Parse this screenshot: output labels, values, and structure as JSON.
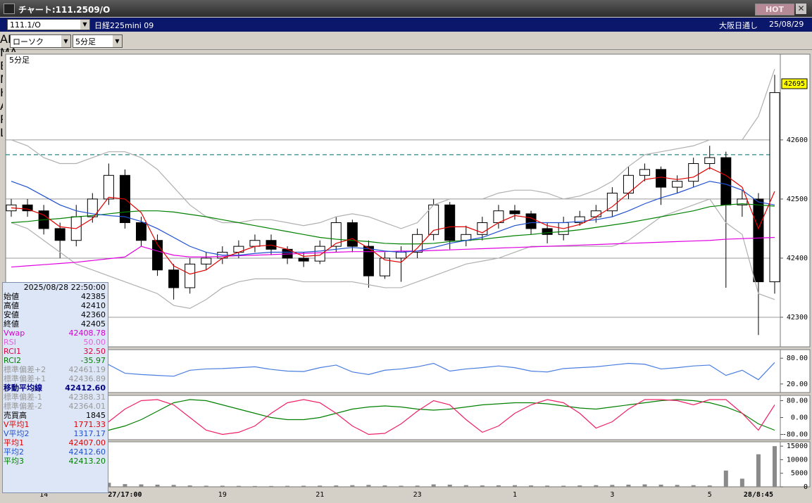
{
  "window": {
    "title": "チャート:111.2509/O",
    "hot": "HOT"
  },
  "symbol_bar": {
    "code": "111.1/O",
    "name": "日経225mini 09",
    "session": "大阪日通し",
    "date": "25/08/29"
  },
  "toolbar": {
    "chart_type": "ローソク",
    "period": "5分足",
    "labels": [
      "ALL",
      "MA",
      "BB",
      "MAE",
      "HL",
      "ATR",
      "PVT",
      "Log"
    ]
  },
  "info_panel": {
    "datetime": "2025/08/28 22:50:00",
    "rows": [
      {
        "label": "始値",
        "value": "42385",
        "color": "#000000"
      },
      {
        "label": "高値",
        "value": "42410",
        "color": "#000000"
      },
      {
        "label": "安値",
        "value": "42360",
        "color": "#000000"
      },
      {
        "label": "終値",
        "value": "42405",
        "color": "#000000"
      },
      {
        "label": "Vwap",
        "value": "42408.78",
        "color": "#d000d0"
      },
      {
        "label": "RSI",
        "value": "50.00",
        "color": "#e060e0"
      },
      {
        "label": "RCI1",
        "value": "32.50",
        "color": "#e00040"
      },
      {
        "label": "RCI2",
        "value": "-35.97",
        "color": "#008000"
      },
      {
        "label": "標準偏差+2",
        "value": "42461.19",
        "color": "#999999"
      },
      {
        "label": "標準偏差+1",
        "value": "42436.89",
        "color": "#999999"
      },
      {
        "label": "移動平均線",
        "value": "42412.60",
        "color": "#000080"
      },
      {
        "label": "標準偏差-1",
        "value": "42388.31",
        "color": "#999999"
      },
      {
        "label": "標準偏差-2",
        "value": "42364.01",
        "color": "#999999"
      },
      {
        "label": "売買高",
        "value": "1845",
        "color": "#000000"
      },
      {
        "label": "V平均1",
        "value": "1771.33",
        "color": "#e00000"
      },
      {
        "label": "V平均2",
        "value": "1317.17",
        "color": "#2050d0"
      },
      {
        "label": "平均1",
        "value": "42407.00",
        "color": "#e00000"
      },
      {
        "label": "平均2",
        "value": "42412.60",
        "color": "#2050d0"
      },
      {
        "label": "平均3",
        "value": "42413.20",
        "color": "#008000"
      }
    ]
  },
  "chart_data": [
    {
      "type": "candlestick",
      "title": "5分足",
      "ylim": [
        42250,
        42745
      ],
      "yticks": [
        42300,
        42400,
        42500,
        42600
      ],
      "grid": true,
      "up_color": "#ffffff",
      "down_color": "#000000",
      "reference_line": 42575,
      "reference_color": "#2a8a8a",
      "last_price": 42695,
      "open": [
        42480,
        42490,
        42480,
        42450,
        42430,
        42470,
        42500,
        42540,
        42460,
        42430,
        42380,
        42350,
        42390,
        42400,
        42410,
        42420,
        42430,
        42415,
        42400,
        42395,
        42420,
        42460,
        42420,
        42370,
        42400,
        42410,
        42440,
        42490,
        42430,
        42440,
        42460,
        42480,
        42475,
        42450,
        42440,
        42460,
        42470,
        42480,
        42510,
        42540,
        42550,
        42520,
        42530,
        42560,
        42570,
        42490,
        42500,
        42360
      ],
      "high": [
        42500,
        42500,
        42490,
        42460,
        42490,
        42510,
        42560,
        42550,
        42470,
        42440,
        42390,
        42400,
        42410,
        42420,
        42430,
        42440,
        42440,
        42420,
        42410,
        42430,
        42470,
        42465,
        42430,
        42410,
        42420,
        42450,
        42500,
        42495,
        42455,
        42470,
        42490,
        42490,
        42480,
        42460,
        42470,
        42480,
        42490,
        42520,
        42555,
        42560,
        42555,
        42540,
        42570,
        42590,
        42580,
        42515,
        42510,
        42710
      ],
      "low": [
        42470,
        42470,
        42440,
        42400,
        42420,
        42460,
        42490,
        42450,
        42420,
        42370,
        42330,
        42340,
        42380,
        42390,
        42400,
        42410,
        42405,
        42390,
        42385,
        42390,
        42410,
        42410,
        42350,
        42365,
        42360,
        42400,
        42430,
        42415,
        42420,
        42430,
        42450,
        42465,
        42440,
        42425,
        42430,
        42455,
        42460,
        42470,
        42500,
        42530,
        42490,
        42510,
        42520,
        42550,
        42350,
        42470,
        42270,
        42340
      ],
      "close": [
        42490,
        42480,
        42450,
        42430,
        42470,
        42500,
        42540,
        42460,
        42430,
        42380,
        42350,
        42390,
        42400,
        42410,
        42420,
        42430,
        42415,
        42400,
        42395,
        42420,
        42460,
        42420,
        42370,
        42400,
        42410,
        42440,
        42490,
        42430,
        42440,
        42460,
        42480,
        42475,
        42450,
        42440,
        42460,
        42470,
        42480,
        42510,
        42540,
        42550,
        42520,
        42530,
        42560,
        42570,
        42490,
        42500,
        42360,
        42680
      ],
      "series": [
        {
          "color": "#b0b0b0",
          "values": [
            42600,
            42590,
            42570,
            42560,
            42560,
            42570,
            42580,
            42580,
            42570,
            42550,
            42520,
            42490,
            42470,
            42460,
            42460,
            42465,
            42465,
            42460,
            42455,
            42460,
            42470,
            42475,
            42470,
            42460,
            42450,
            42460,
            42490,
            42500,
            42500,
            42500,
            42510,
            42515,
            42515,
            42510,
            42500,
            42505,
            42515,
            42530,
            42555,
            42575,
            42580,
            42585,
            42590,
            42600,
            42600,
            42600,
            42640,
            42720
          ]
        },
        {
          "color": "#b0b0b0",
          "values": [
            42460,
            42450,
            42430,
            42410,
            42390,
            42380,
            42370,
            42360,
            42350,
            42340,
            42320,
            42315,
            42330,
            42350,
            42360,
            42365,
            42365,
            42365,
            42360,
            42360,
            42360,
            42360,
            42355,
            42350,
            42350,
            42360,
            42370,
            42380,
            42390,
            42395,
            42400,
            42410,
            42420,
            42420,
            42420,
            42420,
            42420,
            42420,
            42430,
            42450,
            42470,
            42480,
            42490,
            42500,
            42460,
            42440,
            42340,
            42330
          ]
        },
        {
          "color": "#e000e0",
          "values": [
            42385,
            42387,
            42389,
            42391,
            42393,
            42396,
            42399,
            42402,
            42420,
            42412,
            42405,
            42402,
            42402,
            42403,
            42404,
            42405,
            42406,
            42407,
            42408,
            42409,
            42410,
            42411,
            42411,
            42411,
            42412,
            42412,
            42413,
            42414,
            42415,
            42416,
            42417,
            42418,
            42419,
            42420,
            42421,
            42422,
            42423,
            42424,
            42425,
            42426,
            42427,
            42428,
            42429,
            42430,
            42432,
            42433,
            42434,
            42435
          ]
        },
        {
          "color": "#008000",
          "values": [
            42460,
            42462,
            42465,
            42467,
            42470,
            42472,
            42475,
            42478,
            42480,
            42480,
            42478,
            42474,
            42470,
            42465,
            42460,
            42455,
            42450,
            42445,
            42440,
            42435,
            42432,
            42430,
            42428,
            42425,
            42424,
            42424,
            42425,
            42428,
            42430,
            42432,
            42435,
            42438,
            42440,
            42443,
            42445,
            42448,
            42452,
            42456,
            42460,
            42465,
            42470,
            42475,
            42480,
            42487,
            42490,
            42492,
            42490,
            42488
          ]
        },
        {
          "color": "#2050d0",
          "values": [
            42530,
            42520,
            42505,
            42490,
            42480,
            42475,
            42472,
            42470,
            42462,
            42450,
            42435,
            42420,
            42410,
            42405,
            42405,
            42408,
            42410,
            42410,
            42410,
            42412,
            42415,
            42418,
            42416,
            42412,
            42410,
            42412,
            42418,
            42425,
            42430,
            42435,
            42445,
            42455,
            42460,
            42460,
            42460,
            42462,
            42465,
            42470,
            42480,
            42492,
            42502,
            42510,
            42520,
            42530,
            42525,
            42515,
            42495,
            42490
          ]
        },
        {
          "color": "#e00000",
          "values": [
            42485,
            42483,
            42473,
            42453,
            42450,
            42467,
            42503,
            42500,
            42477,
            42423,
            42387,
            42373,
            42380,
            42400,
            42410,
            42420,
            42422,
            42415,
            42403,
            42405,
            42425,
            42433,
            42417,
            42397,
            42393,
            42417,
            42447,
            42453,
            42453,
            42443,
            42460,
            42472,
            42468,
            42455,
            42450,
            42457,
            42470,
            42487,
            42510,
            42533,
            42537,
            42533,
            42537,
            42553,
            42540,
            42520,
            42450,
            42513
          ]
        }
      ]
    },
    {
      "type": "line",
      "ylim": [
        0,
        100
      ],
      "yticks": [
        {
          "value": 80,
          "label": "80.00"
        },
        {
          "value": 20,
          "label": "20.00"
        }
      ],
      "series": [
        {
          "color": "#4a7ee0",
          "values": [
            55,
            52,
            48,
            46,
            55,
            60,
            65,
            45,
            42,
            40,
            38,
            52,
            55,
            56,
            58,
            60,
            54,
            50,
            49,
            58,
            64,
            48,
            42,
            52,
            55,
            60,
            68,
            50,
            55,
            58,
            62,
            58,
            50,
            48,
            56,
            58,
            60,
            64,
            68,
            66,
            55,
            58,
            62,
            64,
            40,
            52,
            30,
            70
          ]
        }
      ]
    },
    {
      "type": "line",
      "ylim": [
        -105,
        105
      ],
      "yticks": [
        {
          "value": 80,
          "label": "80.00"
        },
        {
          "value": 0,
          "label": "0.00"
        },
        {
          "value": -80,
          "label": "-80.00"
        }
      ],
      "series": [
        {
          "color": "#008000",
          "values": [
            10,
            -20,
            -50,
            -70,
            -75,
            -70,
            -60,
            -40,
            -10,
            30,
            70,
            85,
            80,
            60,
            40,
            20,
            0,
            -10,
            -10,
            0,
            20,
            40,
            50,
            55,
            50,
            40,
            35,
            40,
            50,
            60,
            65,
            70,
            70,
            65,
            55,
            45,
            40,
            50,
            60,
            70,
            80,
            85,
            80,
            70,
            50,
            20,
            -30,
            -60
          ]
        },
        {
          "color": "#f0206a",
          "values": [
            30,
            60,
            80,
            50,
            -20,
            -60,
            -20,
            40,
            80,
            85,
            60,
            0,
            -60,
            -80,
            -70,
            -40,
            20,
            70,
            85,
            70,
            20,
            -40,
            -80,
            -75,
            -30,
            30,
            80,
            60,
            -10,
            -70,
            -40,
            20,
            60,
            85,
            70,
            20,
            -50,
            -20,
            40,
            85,
            85,
            80,
            60,
            85,
            85,
            20,
            -60,
            60
          ]
        }
      ]
    },
    {
      "type": "bar",
      "color": "#8a8a8a",
      "ylim": [
        0,
        16600
      ],
      "yticks": [
        0,
        5000,
        10000,
        15000
      ],
      "categories": [
        null,
        null,
        "14",
        null,
        null,
        null,
        null,
        "27/17:00",
        null,
        null,
        null,
        null,
        null,
        "19",
        null,
        null,
        null,
        null,
        null,
        "21",
        null,
        null,
        null,
        null,
        null,
        "23",
        null,
        null,
        null,
        null,
        null,
        "1",
        null,
        null,
        null,
        null,
        null,
        "3",
        null,
        null,
        null,
        null,
        null,
        "5",
        null,
        null,
        "28/8:45",
        null
      ],
      "values": [
        800,
        600,
        500,
        700,
        900,
        1200,
        1500,
        1000,
        900,
        800,
        700,
        500,
        400,
        400,
        350,
        300,
        300,
        350,
        400,
        450,
        500,
        600,
        700,
        500,
        400,
        450,
        900,
        800,
        600,
        500,
        550,
        600,
        500,
        450,
        400,
        500,
        600,
        700,
        800,
        900,
        800,
        700,
        600,
        500,
        6000,
        3000,
        12000,
        15000
      ]
    }
  ]
}
